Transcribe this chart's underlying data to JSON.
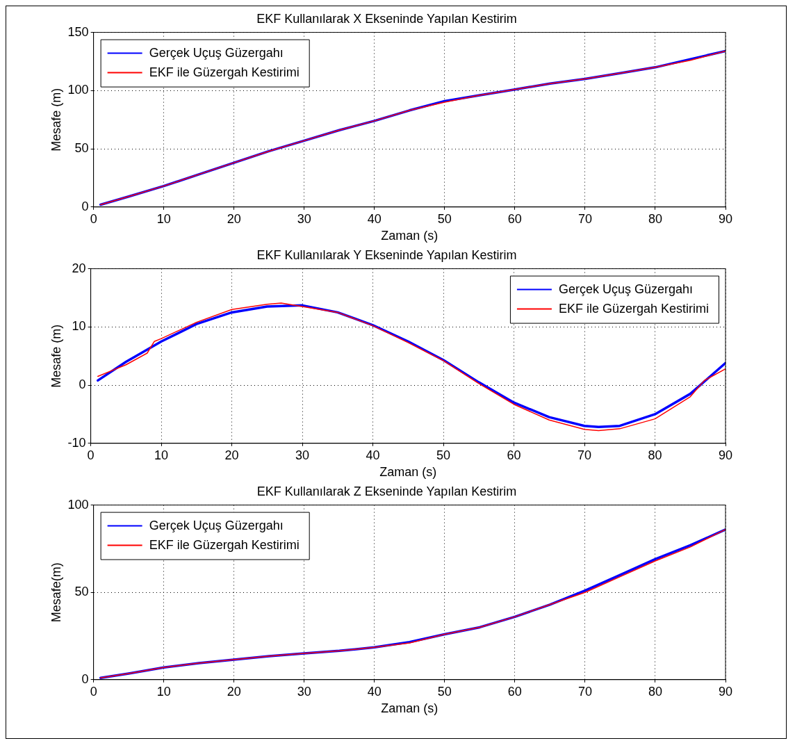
{
  "chart_data": [
    {
      "type": "line",
      "title": "EKF Kullanılarak X Ekseninde Yapılan Kestirim",
      "xlabel": "Zaman (s)",
      "ylabel": "Mesafe (m)",
      "xlim": [
        0,
        90
      ],
      "xticks": [
        0,
        10,
        20,
        30,
        40,
        50,
        60,
        70,
        80,
        90
      ],
      "ylim": [
        0,
        150
      ],
      "yticks": [
        0,
        50,
        100,
        150
      ],
      "grid": true,
      "legend": "top left",
      "line_style": "solid",
      "marker": "none",
      "series": [
        {
          "name": "Gerçek Uçuş Güzergahı",
          "color": "#0000ff",
          "x": [
            1,
            5,
            10,
            15,
            20,
            25,
            30,
            35,
            40,
            45,
            50,
            55,
            60,
            65,
            70,
            75,
            80,
            85,
            90
          ],
          "values": [
            2,
            9,
            18,
            28,
            38,
            48,
            57,
            66,
            74,
            83,
            91,
            96,
            101,
            106,
            110,
            115,
            120,
            127,
            134
          ]
        },
        {
          "name": "EKF ile Güzergah Kestirimi",
          "color": "#ff0000",
          "x": [
            1,
            5,
            10,
            15,
            20,
            25,
            30,
            35,
            40,
            45,
            50,
            55,
            60,
            65,
            70,
            75,
            80,
            85,
            90
          ],
          "values": [
            2,
            9,
            18,
            28,
            38,
            48,
            57,
            66,
            74,
            83,
            90,
            96,
            101,
            106,
            110,
            115,
            120,
            126,
            134
          ]
        }
      ]
    },
    {
      "type": "line",
      "title": "EKF Kullanılarak Y Ekseninde Yapılan Kestirim",
      "xlabel": "Zaman (s)",
      "ylabel": "Mesafe (m)",
      "xlim": [
        0,
        90
      ],
      "xticks": [
        0,
        10,
        20,
        30,
        40,
        50,
        60,
        70,
        80,
        90
      ],
      "ylim": [
        -10,
        20
      ],
      "yticks": [
        -10,
        0,
        10,
        20
      ],
      "grid": true,
      "legend": "top right",
      "line_style": "solid",
      "marker": "none",
      "series": [
        {
          "name": "Gerçek Uçuş Güzergahı",
          "color": "#0000ff",
          "x": [
            1,
            5,
            10,
            15,
            20,
            25,
            30,
            35,
            40,
            45,
            50,
            55,
            60,
            65,
            70,
            72,
            75,
            80,
            85,
            90
          ],
          "values": [
            0.8,
            4,
            7.5,
            10.5,
            12.5,
            13.5,
            13.7,
            12.5,
            10.3,
            7.5,
            4.3,
            0.5,
            -3,
            -5.5,
            -7,
            -7.2,
            -7,
            -5,
            -1.5,
            3.8
          ]
        },
        {
          "name": "EKF ile Güzergah Kestirimi",
          "color": "#ff0000",
          "x": [
            1,
            3,
            5,
            8,
            9,
            10,
            15,
            20,
            25,
            27,
            30,
            35,
            40,
            45,
            50,
            55,
            60,
            65,
            70,
            72,
            75,
            80,
            85,
            87,
            90
          ],
          "values": [
            1.5,
            2.5,
            3.5,
            5.5,
            7.5,
            8,
            10.8,
            13,
            13.9,
            14.1,
            13.5,
            12.5,
            10.2,
            7.3,
            4.2,
            0.3,
            -3.3,
            -6,
            -7.6,
            -7.8,
            -7.5,
            -5.8,
            -2,
            0.8,
            2.8
          ]
        }
      ]
    },
    {
      "type": "line",
      "title": "EKF Kullanılarak Z Ekseninde Yapılan Kestirim",
      "xlabel": "Zaman (s)",
      "ylabel": "Mesafe(m)",
      "xlim": [
        0,
        90
      ],
      "xticks": [
        0,
        10,
        20,
        30,
        40,
        50,
        60,
        70,
        80,
        90
      ],
      "ylim": [
        0,
        100
      ],
      "yticks": [
        0,
        50,
        100
      ],
      "grid": true,
      "legend": "top left",
      "line_style": "solid",
      "marker": "none",
      "series": [
        {
          "name": "Gerçek Uçuş Güzergahı",
          "color": "#0000ff",
          "x": [
            1,
            5,
            10,
            15,
            20,
            25,
            30,
            35,
            40,
            45,
            50,
            55,
            60,
            65,
            70,
            75,
            80,
            85,
            90
          ],
          "values": [
            1,
            3.5,
            7,
            9.5,
            11.5,
            13.5,
            15,
            16.5,
            18.5,
            21.5,
            26,
            30,
            36,
            43,
            51,
            60,
            69,
            77,
            86
          ]
        },
        {
          "name": "EKF ile Güzergah Kestirimi",
          "color": "#ff0000",
          "x": [
            1,
            5,
            10,
            15,
            20,
            25,
            30,
            35,
            40,
            45,
            50,
            55,
            60,
            65,
            70,
            75,
            80,
            85,
            90
          ],
          "values": [
            1,
            3.5,
            7,
            9.5,
            11.5,
            13.5,
            15,
            16.5,
            18.5,
            21,
            26,
            30,
            36,
            43,
            50,
            59,
            68,
            76,
            86
          ]
        }
      ]
    }
  ]
}
